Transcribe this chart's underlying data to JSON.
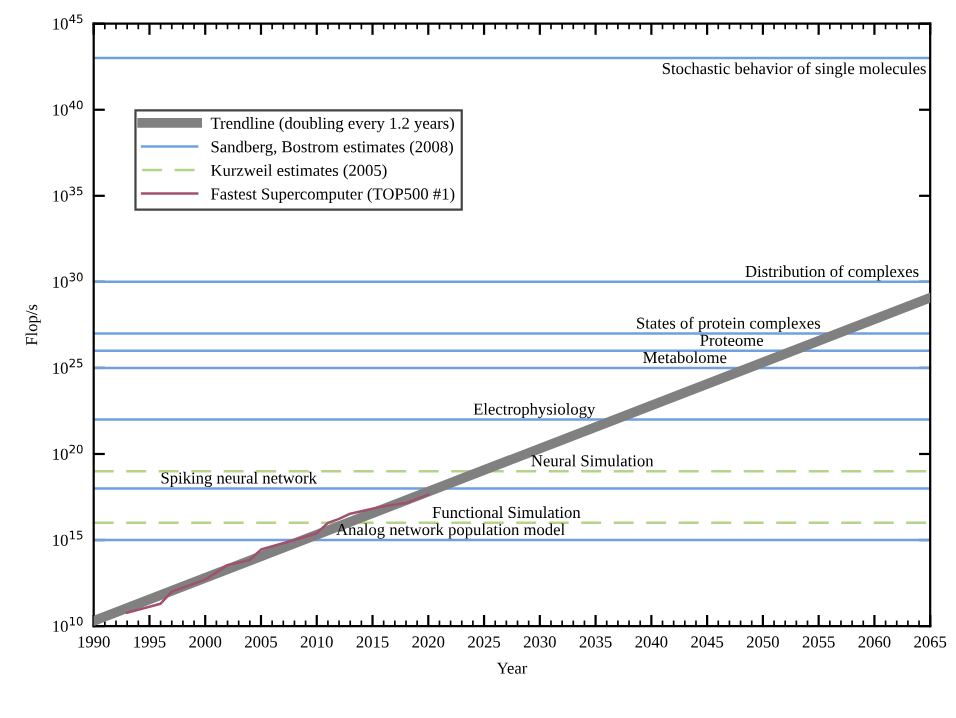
{
  "chart_data": {
    "type": "line",
    "xlabel": "Year",
    "ylabel": "Flop/s",
    "log": "y",
    "xlim": [
      1990,
      2065
    ],
    "xticks": [
      1990,
      1995,
      2000,
      2005,
      2010,
      2015,
      2020,
      2025,
      2030,
      2035,
      2040,
      2045,
      2050,
      2055,
      2060,
      2065
    ],
    "ylim": [
      10000000000.0,
      1e+45
    ],
    "yticks": [
      {
        "value": 10000000000.0,
        "label": "10$^{10}$"
      },
      {
        "value": 1000000000000000.0,
        "label": "10$^{15}$"
      },
      {
        "value": 1e+20,
        "label": "10$^{20}$"
      },
      {
        "value": 1e+25,
        "label": "10$^{25}$"
      },
      {
        "value": 1e+30,
        "label": "10$^{30}$"
      },
      {
        "value": 1e+35,
        "label": "10$^{35}$"
      },
      {
        "value": 1e+40,
        "label": "10$^{40}$"
      },
      {
        "value": 1e+45,
        "label": "10$^{45}$"
      }
    ],
    "grid": false,
    "legend": "top left",
    "marker": "none",
    "series": [
      {
        "name": "Trendline (doubling every 1.2 years)",
        "color": "#808080",
        "x": [
          1990,
          2065
        ],
        "values": [
          20000000000.0,
          1.2e+29
        ]
      },
      {
        "name": "Sandberg, Bostrom estimates (2008)",
        "color": "#6fa0e0",
        "x": [
          1990,
          2065
        ],
        "values": [
          1e+43,
          1e+43
        ]
      },
      {
        "color": "#6fa0e0",
        "x": [
          1990,
          2065
        ],
        "values": [
          1e+30,
          1e+30
        ]
      },
      {
        "color": "#6fa0e0",
        "x": [
          1990,
          2065
        ],
        "values": [
          1e+27,
          1e+27
        ]
      },
      {
        "color": "#6fa0e0",
        "x": [
          1990,
          2065
        ],
        "values": [
          1e+26,
          1e+26
        ]
      },
      {
        "color": "#6fa0e0",
        "x": [
          1990,
          2065
        ],
        "values": [
          1e+25,
          1e+25
        ]
      },
      {
        "color": "#6fa0e0",
        "x": [
          1990,
          2065
        ],
        "values": [
          1e+22,
          1e+22
        ]
      },
      {
        "color": "#6fa0e0",
        "x": [
          1990,
          2065
        ],
        "values": [
          1e+18,
          1e+18
        ]
      },
      {
        "color": "#6fa0e0",
        "x": [
          1990,
          2065
        ],
        "values": [
          1000000000000000.0,
          1000000000000000.0
        ]
      },
      {
        "name": "Kurzweil estimates (2005)",
        "color": "#b5d48a",
        "line_style": "dashed",
        "x": [
          1990,
          2065
        ],
        "values": [
          1e+19,
          1e+19
        ]
      },
      {
        "color": "#b5d48a",
        "line_style": "dashed",
        "x": [
          1990,
          2065
        ],
        "values": [
          1e+16,
          1e+16
        ]
      },
      {
        "name": "Fastest Supercomputer (TOP500 #1)",
        "color": "#a05070",
        "x": [
          1993,
          1996,
          1997,
          2000,
          2002,
          2004,
          2005,
          2008,
          2010,
          2011,
          2012,
          2013,
          2016,
          2018,
          2020
        ],
        "values": [
          60000000000.0,
          200000000000.0,
          1000000000000.0,
          5000000000000.0,
          35000000000000.0,
          70000000000000.0,
          280000000000000.0,
          1000000000000000.0,
          2500000000000000.0,
          1e+16,
          1.7e+16,
          3.4e+16,
          9.3e+16,
          1.4e+17,
          4.4e+17
        ]
      }
    ],
    "annotations": [
      {
        "text": "Stochastic behavior of single molecules",
        "x": 2052.8,
        "y": 1e+43
      },
      {
        "text": "Distribution of complexes",
        "x": 2056.2,
        "y": 1e+30
      },
      {
        "text": "States of protein complexes",
        "x": 2046.9,
        "y": 1e+27
      },
      {
        "text": "Proteome",
        "x": 2047.2,
        "y": 1e+26
      },
      {
        "text": "Metabolome",
        "x": 2043,
        "y": 1e+25
      },
      {
        "text": "Electrophysiology",
        "x": 2029.5,
        "y": 1e+22
      },
      {
        "text": "Neural Simulation",
        "x": 2034.7,
        "y": 1e+19
      },
      {
        "text": "Spiking neural network",
        "x": 2003,
        "y": 1e+18
      },
      {
        "text": "Functional Simulation",
        "x": 2027,
        "y": 1e+16
      },
      {
        "text": "Analog network population model",
        "x": 2022,
        "y": 1000000000000000.0
      }
    ]
  }
}
